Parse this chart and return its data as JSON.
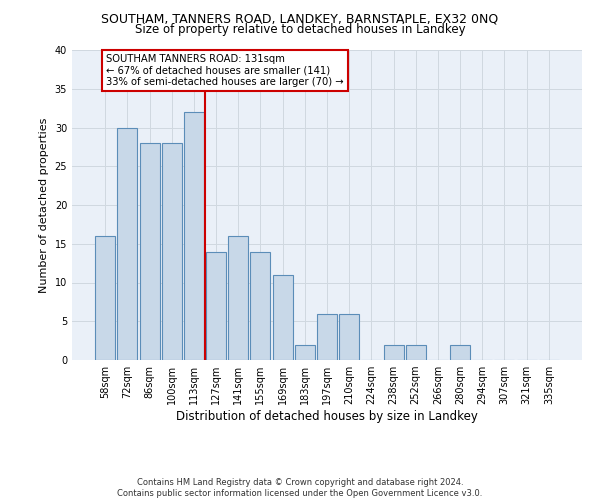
{
  "title": "SOUTHAM, TANNERS ROAD, LANDKEY, BARNSTAPLE, EX32 0NQ",
  "subtitle": "Size of property relative to detached houses in Landkey",
  "xlabel": "Distribution of detached houses by size in Landkey",
  "ylabel": "Number of detached properties",
  "categories": [
    "58sqm",
    "72sqm",
    "86sqm",
    "100sqm",
    "113sqm",
    "127sqm",
    "141sqm",
    "155sqm",
    "169sqm",
    "183sqm",
    "197sqm",
    "210sqm",
    "224sqm",
    "238sqm",
    "252sqm",
    "266sqm",
    "280sqm",
    "294sqm",
    "307sqm",
    "321sqm",
    "335sqm"
  ],
  "values": [
    16,
    30,
    28,
    28,
    32,
    14,
    16,
    14,
    11,
    2,
    6,
    6,
    0,
    2,
    2,
    0,
    2,
    0,
    0,
    0,
    0
  ],
  "bar_color": "#c8d8e8",
  "bar_edge_color": "#5b8db8",
  "grid_color": "#d0d8e0",
  "bg_color": "#eaf0f8",
  "vline_color": "#cc0000",
  "annotation_box_text": "SOUTHAM TANNERS ROAD: 131sqm\n← 67% of detached houses are smaller (141)\n33% of semi-detached houses are larger (70) →",
  "footer_line1": "Contains HM Land Registry data © Crown copyright and database right 2024.",
  "footer_line2": "Contains public sector information licensed under the Open Government Licence v3.0.",
  "ylim": [
    0,
    40
  ],
  "yticks": [
    0,
    5,
    10,
    15,
    20,
    25,
    30,
    35,
    40
  ]
}
